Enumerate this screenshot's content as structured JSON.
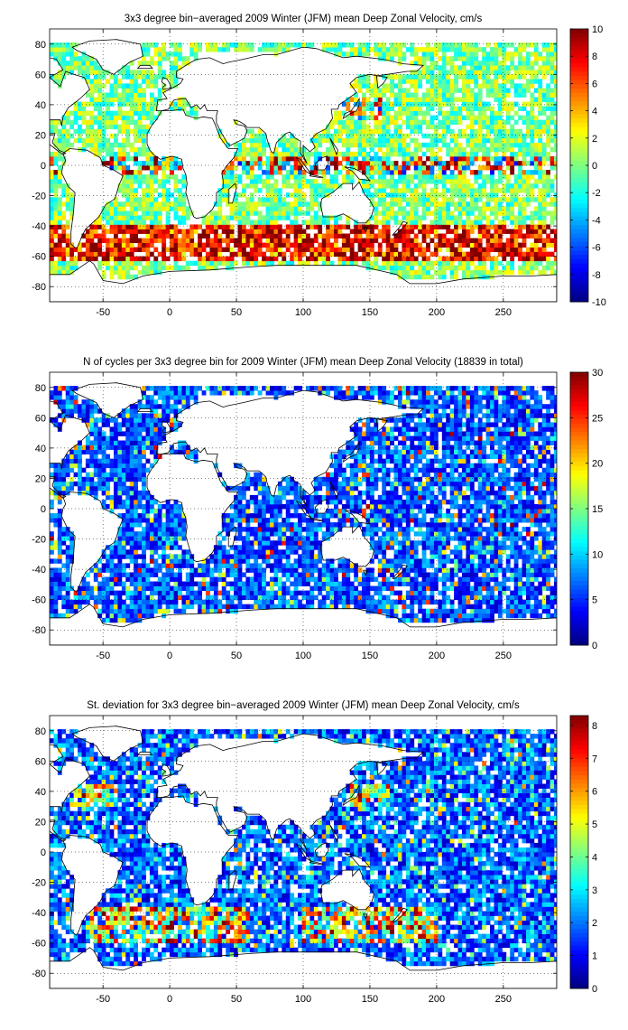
{
  "chart_data": [
    {
      "type": "heatmap",
      "title": "3x3 degree bin−averaged 2009 Winter (JFM) mean Deep Zonal Velocity, cm/s",
      "xlabel": "",
      "ylabel": "",
      "xlim": [
        -90,
        290
      ],
      "ylim": [
        -90,
        90
      ],
      "x_ticks": [
        -50,
        0,
        50,
        100,
        150,
        200,
        250
      ],
      "y_ticks": [
        80,
        60,
        40,
        20,
        0,
        -20,
        -40,
        -60,
        -80
      ],
      "colorbar": {
        "min": -10,
        "max": 10,
        "ticks": [
          10,
          8,
          6,
          4,
          2,
          0,
          -2,
          -4,
          -6,
          -8,
          -10
        ]
      },
      "colormap": "jet",
      "grid": true,
      "bin_size_deg": 3
    },
    {
      "type": "heatmap",
      "title": "N of cycles per 3x3 degree bin for 2009 Winter (JFM) mean Deep Zonal Velocity (18839 in total)",
      "xlabel": "",
      "ylabel": "",
      "xlim": [
        -90,
        290
      ],
      "ylim": [
        -90,
        90
      ],
      "x_ticks": [
        -50,
        0,
        50,
        100,
        150,
        200,
        250
      ],
      "y_ticks": [
        80,
        60,
        40,
        20,
        0,
        -20,
        -40,
        -60,
        -80
      ],
      "colorbar": {
        "min": 0,
        "max": 30,
        "ticks": [
          30,
          25,
          20,
          15,
          10,
          5,
          0
        ]
      },
      "colormap": "jet",
      "grid": true,
      "bin_size_deg": 3
    },
    {
      "type": "heatmap",
      "title": "St. deviation for 3x3 degree bin−averaged 2009 Winter (JFM) mean Deep Zonal Velocity, cm/s",
      "xlabel": "",
      "ylabel": "",
      "xlim": [
        -90,
        290
      ],
      "ylim": [
        -90,
        90
      ],
      "x_ticks": [
        -50,
        0,
        50,
        100,
        150,
        200,
        250
      ],
      "y_ticks": [
        80,
        60,
        40,
        20,
        0,
        -20,
        -40,
        -60,
        -80
      ],
      "colorbar": {
        "min": 0,
        "max": 8.3,
        "ticks": [
          8,
          7,
          6,
          5,
          4,
          3,
          2,
          1,
          0
        ]
      },
      "colormap": "jet",
      "grid": true,
      "bin_size_deg": 3
    }
  ]
}
